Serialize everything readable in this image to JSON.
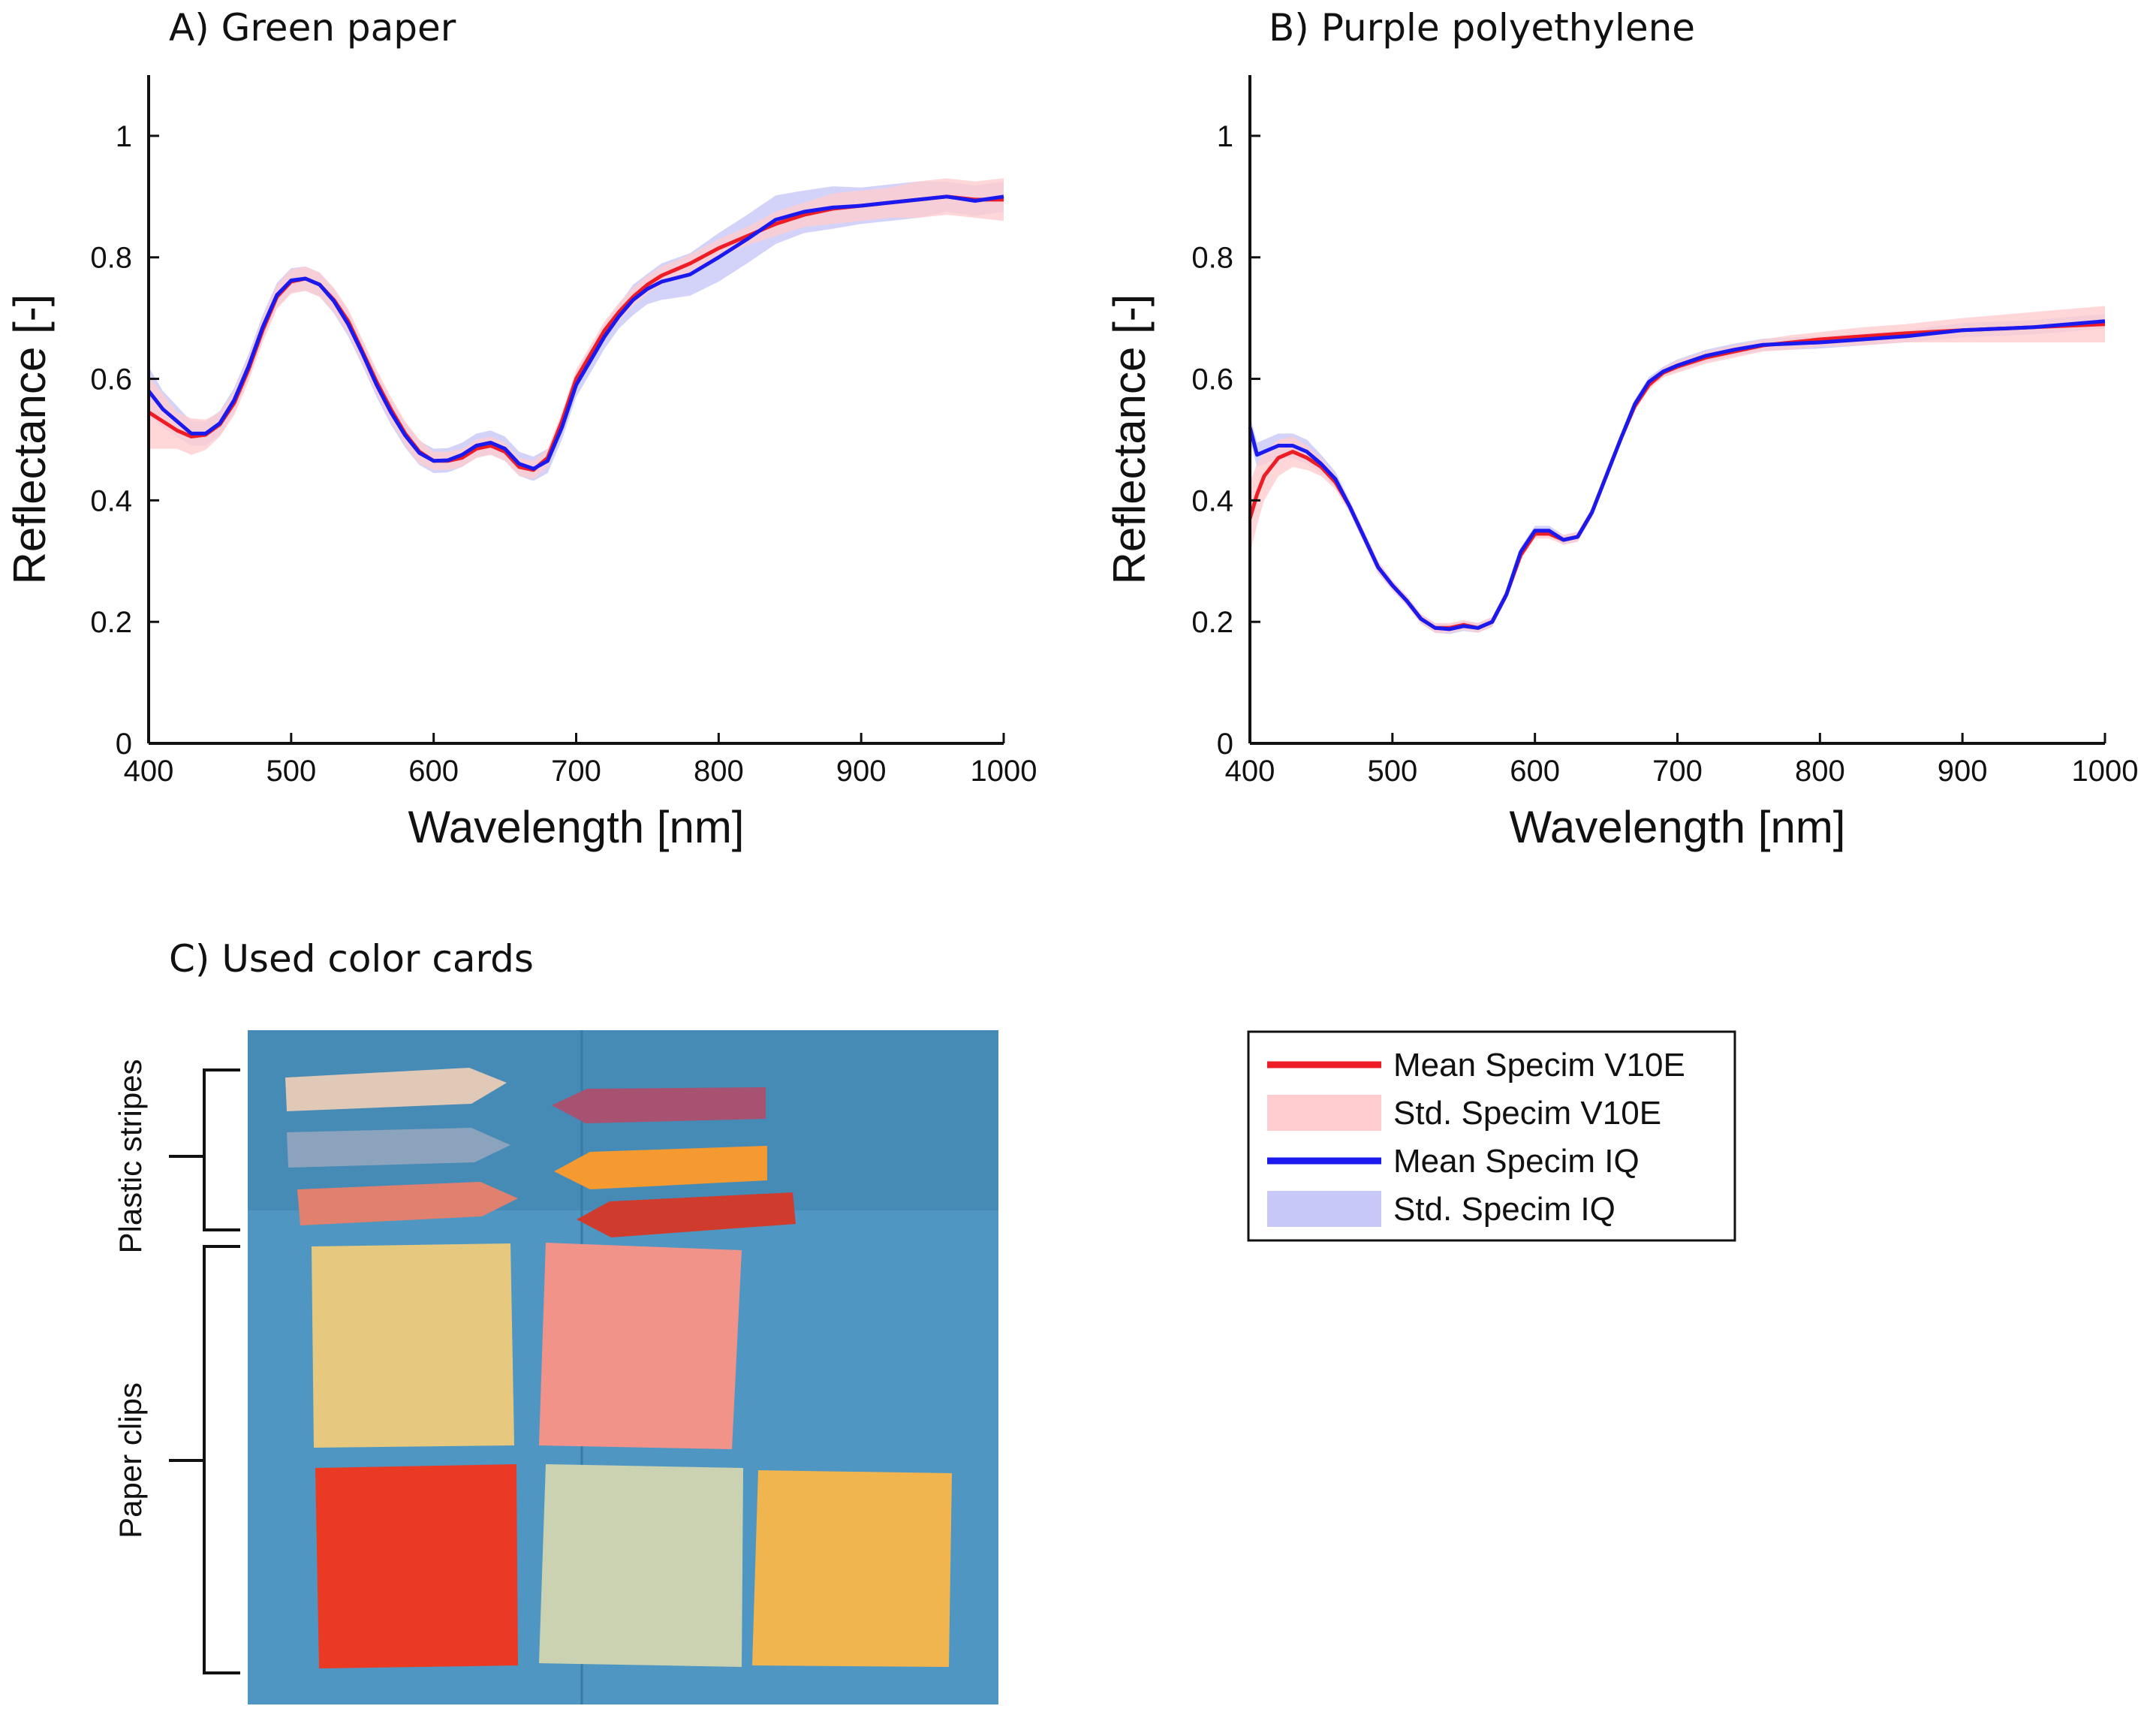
{
  "panels": {
    "a_title": "A) Green paper",
    "b_title": "B) Purple polyethylene",
    "c_title": "C) Used color cards"
  },
  "colors": {
    "v10e_mean": "#ee1c25",
    "v10e_std": "#ffcdd0",
    "iq_mean": "#1a1aee",
    "iq_std": "#c8c8f8",
    "photo_bg": "#4f97c2"
  },
  "legend": {
    "items": [
      {
        "label": "Mean Specim V10E",
        "kind": "line",
        "color_key": "v10e_mean"
      },
      {
        "label": "Std. Specim V10E",
        "kind": "band",
        "color_key": "v10e_std"
      },
      {
        "label": "Mean Specim IQ",
        "kind": "line",
        "color_key": "iq_mean"
      },
      {
        "label": "Std. Specim IQ",
        "kind": "band",
        "color_key": "iq_std"
      }
    ]
  },
  "photo": {
    "bracket_plastic": "Plastic stripes",
    "bracket_paper": "Paper clips",
    "cards": [
      "light-beige stripe",
      "grey-blue stripe",
      "salmon stripe",
      "mauve stripe",
      "orange stripe",
      "red stripe",
      "yellow card",
      "pink card",
      "red card",
      "pale green card",
      "orange card"
    ]
  },
  "chart_data": [
    {
      "type": "line",
      "title": "A) Green paper",
      "xlabel": "Wavelength [nm]",
      "ylabel": "Reflectance [-]",
      "xlim": [
        400,
        1000
      ],
      "ylim": [
        0,
        1.1
      ],
      "xticks": [
        400,
        500,
        600,
        700,
        800,
        900,
        1000
      ],
      "yticks": [
        0,
        0.2,
        0.4,
        0.6,
        0.8,
        1
      ],
      "ytick_labels": [
        "0",
        "0.2",
        "0.4",
        "0.6",
        "0.8",
        "1"
      ],
      "grid": false,
      "x": [
        400,
        410,
        420,
        430,
        440,
        450,
        460,
        470,
        480,
        490,
        500,
        510,
        520,
        530,
        540,
        550,
        560,
        570,
        580,
        590,
        600,
        610,
        620,
        630,
        640,
        650,
        660,
        670,
        680,
        690,
        700,
        710,
        720,
        730,
        740,
        750,
        760,
        780,
        800,
        820,
        840,
        860,
        880,
        900,
        920,
        940,
        960,
        980,
        1000
      ],
      "series": [
        {
          "name": "Mean Specim V10E",
          "std": [
            0.06,
            0.045,
            0.03,
            0.03,
            0.025,
            0.02,
            0.02,
            0.02,
            0.02,
            0.02,
            0.02,
            0.02,
            0.02,
            0.02,
            0.02,
            0.02,
            0.02,
            0.02,
            0.02,
            0.02,
            0.015,
            0.015,
            0.015,
            0.015,
            0.015,
            0.015,
            0.015,
            0.015,
            0.015,
            0.015,
            0.015,
            0.015,
            0.015,
            0.015,
            0.015,
            0.015,
            0.015,
            0.015,
            0.015,
            0.015,
            0.02,
            0.02,
            0.025,
            0.025,
            0.025,
            0.03,
            0.03,
            0.03,
            0.035
          ],
          "values": [
            0.545,
            0.53,
            0.515,
            0.505,
            0.508,
            0.525,
            0.56,
            0.615,
            0.68,
            0.735,
            0.76,
            0.765,
            0.755,
            0.73,
            0.695,
            0.645,
            0.595,
            0.55,
            0.51,
            0.48,
            0.465,
            0.465,
            0.47,
            0.485,
            0.49,
            0.48,
            0.455,
            0.45,
            0.47,
            0.53,
            0.6,
            0.64,
            0.68,
            0.71,
            0.735,
            0.755,
            0.77,
            0.79,
            0.815,
            0.835,
            0.855,
            0.87,
            0.88,
            0.885,
            0.89,
            0.895,
            0.9,
            0.895,
            0.895
          ]
        },
        {
          "name": "Mean Specim IQ",
          "std": [
            0.04,
            0.03,
            0.025,
            0.02,
            0.02,
            0.02,
            0.02,
            0.02,
            0.02,
            0.02,
            0.02,
            0.02,
            0.02,
            0.02,
            0.02,
            0.02,
            0.02,
            0.02,
            0.02,
            0.02,
            0.02,
            0.02,
            0.02,
            0.02,
            0.02,
            0.02,
            0.02,
            0.02,
            0.02,
            0.02,
            0.02,
            0.02,
            0.02,
            0.02,
            0.025,
            0.025,
            0.03,
            0.035,
            0.04,
            0.04,
            0.04,
            0.035,
            0.035,
            0.03,
            0.03,
            0.03,
            0.025,
            0.025,
            0.025
          ],
          "values": [
            0.58,
            0.55,
            0.53,
            0.51,
            0.51,
            0.527,
            0.565,
            0.62,
            0.685,
            0.738,
            0.762,
            0.765,
            0.755,
            0.728,
            0.69,
            0.642,
            0.59,
            0.545,
            0.507,
            0.478,
            0.465,
            0.466,
            0.475,
            0.49,
            0.495,
            0.485,
            0.46,
            0.452,
            0.465,
            0.52,
            0.59,
            0.63,
            0.67,
            0.703,
            0.73,
            0.748,
            0.76,
            0.772,
            0.8,
            0.83,
            0.862,
            0.875,
            0.882,
            0.885,
            0.89,
            0.895,
            0.9,
            0.893,
            0.9
          ]
        }
      ]
    },
    {
      "type": "line",
      "title": "B) Purple polyethylene",
      "xlabel": "Wavelength [nm]",
      "ylabel": "Reflectance [-]",
      "xlim": [
        400,
        1000
      ],
      "ylim": [
        0,
        1.1
      ],
      "xticks": [
        400,
        500,
        600,
        700,
        800,
        900,
        1000
      ],
      "yticks": [
        0,
        0.2,
        0.4,
        0.6,
        0.8,
        1
      ],
      "ytick_labels": [
        "0",
        "0.2",
        "0.4",
        "0.6",
        "0.8",
        "1"
      ],
      "grid": false,
      "x": [
        400,
        405,
        410,
        420,
        430,
        440,
        450,
        460,
        470,
        480,
        490,
        500,
        510,
        520,
        530,
        540,
        550,
        560,
        570,
        580,
        590,
        600,
        610,
        620,
        630,
        640,
        650,
        660,
        670,
        680,
        690,
        700,
        720,
        740,
        760,
        780,
        800,
        830,
        860,
        900,
        950,
        1000
      ],
      "series": [
        {
          "name": "Mean Specim V10E",
          "std": [
            0.06,
            0.05,
            0.04,
            0.03,
            0.025,
            0.02,
            0.015,
            0.012,
            0.01,
            0.01,
            0.01,
            0.008,
            0.008,
            0.008,
            0.008,
            0.008,
            0.008,
            0.008,
            0.008,
            0.008,
            0.008,
            0.008,
            0.008,
            0.008,
            0.008,
            0.008,
            0.008,
            0.008,
            0.008,
            0.008,
            0.008,
            0.01,
            0.01,
            0.01,
            0.01,
            0.012,
            0.012,
            0.015,
            0.015,
            0.02,
            0.025,
            0.03
          ],
          "values": [
            0.37,
            0.41,
            0.44,
            0.47,
            0.48,
            0.47,
            0.455,
            0.43,
            0.39,
            0.34,
            0.29,
            0.26,
            0.235,
            0.205,
            0.19,
            0.19,
            0.195,
            0.19,
            0.2,
            0.245,
            0.31,
            0.345,
            0.345,
            0.335,
            0.34,
            0.38,
            0.44,
            0.5,
            0.555,
            0.59,
            0.61,
            0.62,
            0.635,
            0.645,
            0.655,
            0.66,
            0.665,
            0.67,
            0.675,
            0.68,
            0.685,
            0.69
          ]
        },
        {
          "name": "Mean Specim IQ",
          "std": [
            0.02,
            0.02,
            0.02,
            0.02,
            0.02,
            0.02,
            0.015,
            0.012,
            0.01,
            0.01,
            0.01,
            0.008,
            0.008,
            0.008,
            0.008,
            0.008,
            0.008,
            0.008,
            0.008,
            0.008,
            0.008,
            0.008,
            0.008,
            0.008,
            0.008,
            0.008,
            0.008,
            0.008,
            0.008,
            0.008,
            0.008,
            0.01,
            0.01,
            0.01,
            0.01,
            0.01,
            0.01,
            0.01,
            0.01,
            0.012,
            0.012,
            0.012
          ],
          "values": [
            0.52,
            0.475,
            0.48,
            0.49,
            0.49,
            0.48,
            0.46,
            0.435,
            0.39,
            0.34,
            0.29,
            0.26,
            0.235,
            0.205,
            0.19,
            0.188,
            0.193,
            0.19,
            0.2,
            0.245,
            0.315,
            0.35,
            0.35,
            0.335,
            0.34,
            0.38,
            0.44,
            0.5,
            0.558,
            0.595,
            0.612,
            0.622,
            0.638,
            0.648,
            0.656,
            0.658,
            0.66,
            0.665,
            0.67,
            0.68,
            0.685,
            0.695
          ]
        }
      ]
    }
  ]
}
